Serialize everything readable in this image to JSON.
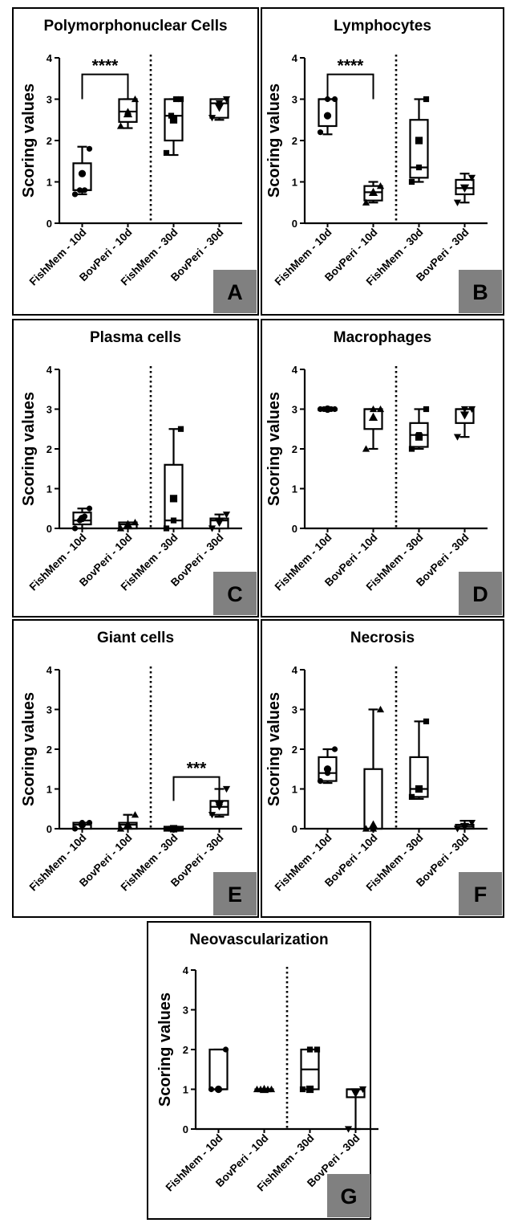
{
  "figure": {
    "colors": {
      "ink": "#000000",
      "letter_box": "#808080",
      "background": "#ffffff"
    }
  },
  "chart_data": [
    {
      "panel": "A",
      "type": "box",
      "title": "Polymorphonuclear Cells",
      "ylabel": "Scoring values",
      "ylim": [
        0,
        4
      ],
      "yticks": [
        0,
        1,
        2,
        3,
        4
      ],
      "categories": [
        "FishMem - 10d",
        "BovPeri - 10d",
        "FishMem - 30d",
        "BovPeri - 30d"
      ],
      "boxes": [
        {
          "min": 0.7,
          "q1": 0.8,
          "median": 0.8,
          "q3": 1.45,
          "max": 1.85,
          "mean": 1.2,
          "points": [
            0.7,
            0.8,
            0.8,
            1.8
          ]
        },
        {
          "min": 2.3,
          "q1": 2.45,
          "median": 2.7,
          "q3": 3.0,
          "max": 3.0,
          "mean": 2.65,
          "points": [
            2.35,
            2.7,
            3.0
          ]
        },
        {
          "min": 1.65,
          "q1": 2.0,
          "median": 2.6,
          "q3": 3.0,
          "max": 3.0,
          "mean": 2.5,
          "points": [
            1.7,
            2.6,
            3.0,
            3.0
          ]
        },
        {
          "min": 2.5,
          "q1": 2.55,
          "median": 2.9,
          "q3": 3.0,
          "max": 3.0,
          "mean": 2.8,
          "points": [
            2.55,
            2.9,
            3.0
          ]
        }
      ],
      "significance": [
        {
          "from": 0,
          "to": 1,
          "label": "****",
          "y": 3.0,
          "y_top": 3.6
        }
      ]
    },
    {
      "panel": "B",
      "type": "box",
      "title": "Lymphocytes",
      "ylabel": "Scoring values",
      "ylim": [
        0,
        4
      ],
      "yticks": [
        0,
        1,
        2,
        3,
        4
      ],
      "categories": [
        "FishMem - 10d",
        "BovPeri - 10d",
        "FishMem - 30d",
        "BovPeri - 30d"
      ],
      "boxes": [
        {
          "min": 2.15,
          "q1": 2.35,
          "median": 3.0,
          "q3": 3.0,
          "max": 3.0,
          "mean": 2.6,
          "points": [
            2.2,
            3.0,
            3.0
          ]
        },
        {
          "min": 0.5,
          "q1": 0.55,
          "median": 0.75,
          "q3": 0.9,
          "max": 1.0,
          "mean": 0.75,
          "points": [
            0.5,
            0.75,
            0.9
          ]
        },
        {
          "min": 1.0,
          "q1": 1.1,
          "median": 1.35,
          "q3": 2.5,
          "max": 3.0,
          "mean": 2.0,
          "points": [
            1.0,
            1.35,
            3.0
          ]
        },
        {
          "min": 0.5,
          "q1": 0.7,
          "median": 0.85,
          "q3": 1.05,
          "max": 1.2,
          "mean": 0.85,
          "points": [
            0.5,
            0.85,
            1.1
          ]
        }
      ],
      "significance": [
        {
          "from": 0,
          "to": 1,
          "label": "****",
          "y": 3.0,
          "y_top": 3.6
        }
      ]
    },
    {
      "panel": "C",
      "type": "box",
      "title": "Plasma cells",
      "ylabel": "Scoring values",
      "ylim": [
        0,
        4
      ],
      "yticks": [
        0,
        1,
        2,
        3,
        4
      ],
      "categories": [
        "FishMem - 10d",
        "BovPeri - 10d",
        "FishMem - 30d",
        "BovPeri - 30d"
      ],
      "boxes": [
        {
          "min": 0.0,
          "q1": 0.1,
          "median": 0.2,
          "q3": 0.4,
          "max": 0.5,
          "mean": 0.25,
          "points": [
            0.0,
            0.2,
            0.3,
            0.5
          ]
        },
        {
          "min": 0.0,
          "q1": 0.0,
          "median": 0.1,
          "q3": 0.15,
          "max": 0.15,
          "mean": 0.1,
          "points": [
            0.0,
            0.1,
            0.15
          ]
        },
        {
          "min": 0.0,
          "q1": 0.0,
          "median": 0.2,
          "q3": 1.6,
          "max": 2.5,
          "mean": 0.75,
          "points": [
            0.0,
            0.2,
            2.5
          ]
        },
        {
          "min": 0.0,
          "q1": 0.0,
          "median": 0.2,
          "q3": 0.25,
          "max": 0.35,
          "mean": 0.15,
          "points": [
            0.0,
            0.2,
            0.35
          ]
        }
      ],
      "significance": []
    },
    {
      "panel": "D",
      "type": "box",
      "title": "Macrophages",
      "ylabel": "Scoring values",
      "ylim": [
        0,
        4
      ],
      "yticks": [
        0,
        1,
        2,
        3,
        4
      ],
      "categories": [
        "FishMem - 10d",
        "BovPeri - 10d",
        "FishMem - 30d",
        "BovPeri - 30d"
      ],
      "boxes": [
        {
          "min": 3.0,
          "q1": 3.0,
          "median": 3.0,
          "q3": 3.0,
          "max": 3.0,
          "mean": 3.0,
          "points": [
            3.0,
            3.0,
            3.0,
            3.0,
            3.0
          ]
        },
        {
          "min": 2.0,
          "q1": 2.5,
          "median": 3.0,
          "q3": 3.0,
          "max": 3.0,
          "mean": 2.8,
          "points": [
            2.0,
            3.0,
            3.0
          ]
        },
        {
          "min": 2.0,
          "q1": 2.05,
          "median": 2.35,
          "q3": 2.65,
          "max": 3.0,
          "mean": 2.3,
          "points": [
            2.0,
            2.35,
            3.0
          ]
        },
        {
          "min": 2.3,
          "q1": 2.65,
          "median": 3.0,
          "q3": 3.0,
          "max": 3.0,
          "mean": 2.85,
          "points": [
            2.3,
            3.0,
            3.0
          ]
        }
      ],
      "significance": []
    },
    {
      "panel": "E",
      "type": "box",
      "title": "Giant cells",
      "ylabel": "Scoring values",
      "ylim": [
        0,
        4
      ],
      "yticks": [
        0,
        1,
        2,
        3,
        4
      ],
      "categories": [
        "FishMem - 10d",
        "BovPeri - 10d",
        "FishMem - 30d",
        "BovPeri - 30d"
      ],
      "boxes": [
        {
          "min": 0.0,
          "q1": 0.0,
          "median": 0.1,
          "q3": 0.15,
          "max": 0.15,
          "mean": 0.1,
          "points": [
            0.0,
            0.15,
            0.15
          ]
        },
        {
          "min": 0.0,
          "q1": 0.0,
          "median": 0.1,
          "q3": 0.15,
          "max": 0.35,
          "mean": 0.1,
          "points": [
            0.0,
            0.1,
            0.35
          ]
        },
        {
          "min": 0.0,
          "q1": 0.0,
          "median": 0.0,
          "q3": 0.0,
          "max": 0.0,
          "mean": 0.0,
          "points": [
            0.0,
            0.0,
            0.0,
            0.0
          ]
        },
        {
          "min": 0.3,
          "q1": 0.35,
          "median": 0.55,
          "q3": 0.7,
          "max": 1.0,
          "mean": 0.6,
          "points": [
            0.35,
            0.55,
            1.0
          ]
        }
      ],
      "significance": [
        {
          "from": 2,
          "to": 3,
          "label": "***",
          "y": 0.7,
          "y_top": 1.3
        }
      ]
    },
    {
      "panel": "F",
      "type": "box",
      "title": "Necrosis",
      "ylabel": "Scoring values",
      "ylim": [
        0,
        4
      ],
      "yticks": [
        0,
        1,
        2,
        3,
        4
      ],
      "categories": [
        "FishMem - 10d",
        "BovPeri - 10d",
        "FishMem - 30d",
        "BovPeri - 30d"
      ],
      "boxes": [
        {
          "min": 1.15,
          "q1": 1.2,
          "median": 1.4,
          "q3": 1.8,
          "max": 2.0,
          "mean": 1.5,
          "points": [
            1.2,
            1.4,
            2.0
          ]
        },
        {
          "min": 0.0,
          "q1": 0.0,
          "median": 0.0,
          "q3": 1.5,
          "max": 3.0,
          "mean": 0.1,
          "points": [
            0.0,
            0.0,
            3.0
          ]
        },
        {
          "min": 0.75,
          "q1": 0.8,
          "median": 1.0,
          "q3": 1.8,
          "max": 2.7,
          "mean": 1.0,
          "points": [
            0.8,
            1.0,
            2.7
          ]
        },
        {
          "min": 0.0,
          "q1": 0.0,
          "median": 0.05,
          "q3": 0.1,
          "max": 0.2,
          "mean": 0.05,
          "points": [
            0.0,
            0.05,
            0.15
          ]
        }
      ],
      "significance": []
    },
    {
      "panel": "G",
      "type": "box",
      "title": "Neovascularization",
      "ylabel": "Scoring values",
      "ylim": [
        0,
        4
      ],
      "yticks": [
        0,
        1,
        2,
        3,
        4
      ],
      "categories": [
        "FishMem - 10d",
        "BovPeri - 10d",
        "FishMem - 30d",
        "BovPeri - 30d"
      ],
      "boxes": [
        {
          "min": 1.0,
          "q1": 1.0,
          "median": 1.0,
          "q3": 2.0,
          "max": 2.0,
          "mean": 1.0,
          "points": [
            1.0,
            1.0,
            2.0
          ]
        },
        {
          "min": 1.0,
          "q1": 1.0,
          "median": 1.0,
          "q3": 1.0,
          "max": 1.0,
          "mean": 1.0,
          "points": [
            1.0,
            1.0,
            1.0,
            1.0,
            1.0
          ]
        },
        {
          "min": 1.0,
          "q1": 1.0,
          "median": 1.5,
          "q3": 2.0,
          "max": 2.0,
          "mean": 1.0,
          "points": [
            1.0,
            2.0,
            2.0
          ]
        },
        {
          "min": 0.0,
          "q1": 0.8,
          "median": 1.0,
          "q3": 1.0,
          "max": 1.0,
          "mean": 0.9,
          "points": [
            0.0,
            0.9,
            1.0
          ]
        }
      ],
      "significance": []
    }
  ]
}
